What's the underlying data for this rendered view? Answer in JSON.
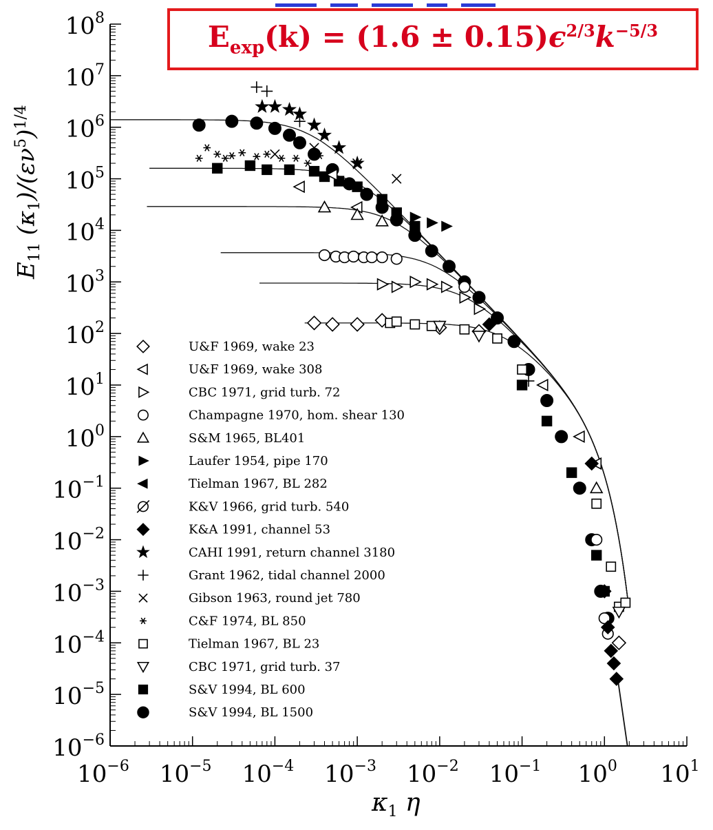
{
  "formula": {
    "lhs": "E",
    "lhs_sub": "exp",
    "arg": "(k) = (1.6 ± 0.15)",
    "eps": "ϵ",
    "eps_pow": "2/3",
    "k": "k",
    "k_pow": "−5/3"
  },
  "chart_data": {
    "type": "scatter",
    "xscale": "log",
    "yscale": "log",
    "xlim": [
      1e-06,
      10
    ],
    "ylim": [
      1e-06,
      100000000.0
    ],
    "xlabel": "κ1 η",
    "ylabel": "E11 (κ1)/(εν^5)^1/4",
    "xticks": [
      "10^-6",
      "10^-5",
      "10^-4",
      "10^-3",
      "10^-2",
      "10^-1",
      "10^0",
      "10^1"
    ],
    "yticks": [
      "10^-6",
      "10^-5",
      "10^-4",
      "10^-3",
      "10^-2",
      "10^-1",
      "10^0",
      "10^1",
      "10^2",
      "10^3",
      "10^4",
      "10^5",
      "10^6",
      "10^7",
      "10^8"
    ],
    "legend_position": "lower-left",
    "legend": [
      {
        "symbol": "diamond-open",
        "label": "U&F 1969, wake 23"
      },
      {
        "symbol": "tri-left-open",
        "label": "U&F 1969, wake 308"
      },
      {
        "symbol": "tri-right-open",
        "label": "CBC 1971, grid turb. 72"
      },
      {
        "symbol": "circle-open",
        "label": "Champagne 1970, hom. shear 130"
      },
      {
        "symbol": "tri-up-open",
        "label": "S&M 1965, BL401"
      },
      {
        "symbol": "tri-right-filled",
        "label": "Laufer 1954, pipe 170"
      },
      {
        "symbol": "tri-left-filled",
        "label": "Tielman 1967, BL 282"
      },
      {
        "symbol": "circle-slash",
        "label": "K&V 1966, grid turb. 540"
      },
      {
        "symbol": "diamond-filled",
        "label": "K&A 1991, channel 53"
      },
      {
        "symbol": "star-filled",
        "label": "CAHI 1991, return channel 3180"
      },
      {
        "symbol": "plus",
        "label": "Grant 1962, tidal channel 2000"
      },
      {
        "symbol": "cross",
        "label": "Gibson 1963, round jet 780"
      },
      {
        "symbol": "asterisk",
        "label": "C&F 1974, BL 850"
      },
      {
        "symbol": "square-open",
        "label": "Tielman 1967, BL 23"
      },
      {
        "symbol": "tri-down-open",
        "label": "CBC 1971, grid turb. 37"
      },
      {
        "symbol": "square-filled",
        "label": "S&V 1994, BL 600"
      },
      {
        "symbol": "circle-filled",
        "label": "S&V 1994, BL 1500"
      }
    ],
    "model_curves": [
      {
        "plateau": 1400000.0,
        "x_start": 1e-06
      },
      {
        "plateau": 160000.0,
        "x_start": 3e-06
      },
      {
        "plateau": 29000.0,
        "x_start": 2.8e-06
      },
      {
        "plateau": 3700.0,
        "x_start": 2.2e-05
      },
      {
        "plateau": 950.0,
        "x_start": 6.5e-05
      },
      {
        "plateau": 160.0,
        "x_start": 0.00023
      }
    ],
    "series": [
      {
        "symbol": "circle-filled",
        "points": [
          [
            1.2e-05,
            1100000.0
          ],
          [
            3e-05,
            1300000.0
          ],
          [
            6e-05,
            1200000.0
          ],
          [
            0.0001,
            950000.0
          ],
          [
            0.00015,
            700000.0
          ],
          [
            0.0002,
            500000.0
          ],
          [
            0.0003,
            300000.0
          ],
          [
            0.0005,
            150000.0
          ],
          [
            0.0008,
            80000.0
          ],
          [
            0.0013,
            50000.0
          ],
          [
            0.002,
            28000.0
          ],
          [
            0.003,
            16000.0
          ],
          [
            0.005,
            8000.0
          ],
          [
            0.008,
            4000.0
          ],
          [
            0.013,
            2000.0
          ],
          [
            0.02,
            1000.0
          ],
          [
            0.03,
            500
          ],
          [
            0.05,
            200
          ],
          [
            0.08,
            70
          ],
          [
            0.12,
            20
          ],
          [
            0.2,
            5
          ],
          [
            0.3,
            1
          ],
          [
            0.5,
            0.1
          ],
          [
            0.7,
            0.01
          ],
          [
            0.9,
            0.001
          ],
          [
            1.1,
            0.0003
          ]
        ]
      },
      {
        "symbol": "square-filled",
        "points": [
          [
            2e-05,
            160000.0
          ],
          [
            5e-05,
            180000.0
          ],
          [
            8e-05,
            150000.0
          ],
          [
            0.00015,
            150000.0
          ],
          [
            0.0003,
            140000.0
          ],
          [
            0.0004,
            110000.0
          ],
          [
            0.0006,
            90000.0
          ],
          [
            0.001,
            70000.0
          ],
          [
            0.002,
            40000.0
          ],
          [
            0.003,
            22000.0
          ],
          [
            0.005,
            12000.0
          ],
          [
            0.1,
            10
          ],
          [
            0.2,
            2
          ],
          [
            0.4,
            0.2
          ],
          [
            0.8,
            0.005
          ],
          [
            1,
            0.001
          ]
        ]
      },
      {
        "symbol": "star-filled",
        "points": [
          [
            7e-05,
            2500000.0
          ],
          [
            0.0001,
            2500000.0
          ],
          [
            0.00015,
            2200000.0
          ],
          [
            0.0002,
            1800000.0
          ],
          [
            0.0003,
            1100000.0
          ],
          [
            0.0004,
            700000.0
          ],
          [
            0.0006,
            400000.0
          ],
          [
            0.001,
            200000.0
          ]
        ]
      },
      {
        "symbol": "plus",
        "points": [
          [
            6e-05,
            6000000.0
          ],
          [
            8e-05,
            5000000.0
          ],
          [
            0.0002,
            1300000.0
          ],
          [
            0.12,
            12
          ]
        ]
      },
      {
        "symbol": "asterisk",
        "points": [
          [
            1.2e-05,
            250000.0
          ],
          [
            1.5e-05,
            400000.0
          ],
          [
            2e-05,
            300000.0
          ],
          [
            2.5e-05,
            250000.0
          ],
          [
            3e-05,
            280000.0
          ],
          [
            4e-05,
            320000.0
          ],
          [
            6e-05,
            270000.0
          ],
          [
            8e-05,
            300000.0
          ],
          [
            0.00012,
            250000.0
          ],
          [
            0.00018,
            250000.0
          ],
          [
            0.00025,
            200000.0
          ],
          [
            0.00035,
            280000.0
          ]
        ]
      },
      {
        "symbol": "tri-left-open",
        "points": [
          [
            0.0002,
            70000.0
          ],
          [
            0.0005,
            120000.0
          ],
          [
            0.001,
            28000.0
          ],
          [
            0.18,
            10
          ],
          [
            0.5,
            1
          ],
          [
            0.8,
            0.3
          ]
        ]
      },
      {
        "symbol": "tri-up-open",
        "points": [
          [
            0.0004,
            28000.0
          ],
          [
            0.001,
            20000.0
          ],
          [
            0.002,
            15000.0
          ],
          [
            0.8,
            0.1
          ]
        ]
      },
      {
        "symbol": "circle-open",
        "points": [
          [
            0.0004,
            3300.0
          ],
          [
            0.00055,
            3100.0
          ],
          [
            0.0007,
            3000.0
          ],
          [
            0.0009,
            3100.0
          ],
          [
            0.0012,
            3000.0
          ],
          [
            0.0015,
            3000.0
          ],
          [
            0.002,
            3000.0
          ],
          [
            0.003,
            2800.0
          ],
          [
            0.02,
            800
          ],
          [
            0.8,
            0.01
          ],
          [
            1,
            0.0003
          ],
          [
            1.1,
            0.00015
          ]
        ]
      },
      {
        "symbol": "tri-right-open",
        "points": [
          [
            0.002,
            900
          ],
          [
            0.003,
            800
          ],
          [
            0.005,
            1000.0
          ],
          [
            0.008,
            900
          ],
          [
            0.012,
            800
          ],
          [
            0.02,
            500
          ],
          [
            0.03,
            300
          ]
        ]
      },
      {
        "symbol": "tri-right-filled",
        "points": [
          [
            0.005,
            18000.0
          ],
          [
            0.008,
            14000.0
          ],
          [
            0.012,
            12000.0
          ]
        ]
      },
      {
        "symbol": "diamond-open",
        "points": [
          [
            0.0003,
            160
          ],
          [
            0.0005,
            150
          ],
          [
            0.001,
            150
          ],
          [
            0.002,
            180
          ],
          [
            0.01,
            130
          ],
          [
            0.03,
            110
          ],
          [
            1.5,
            0.0001
          ]
        ]
      },
      {
        "symbol": "diamond-filled",
        "points": [
          [
            0.04,
            150
          ],
          [
            0.7,
            0.3
          ],
          [
            1,
            0.001
          ],
          [
            1.1,
            0.0002
          ],
          [
            1.2,
            7e-05
          ],
          [
            1.3,
            4e-05
          ],
          [
            1.4,
            2e-05
          ]
        ]
      },
      {
        "symbol": "square-open",
        "points": [
          [
            0.0025,
            160
          ],
          [
            0.003,
            170
          ],
          [
            0.005,
            150
          ],
          [
            0.008,
            140
          ],
          [
            0.02,
            120
          ],
          [
            0.05,
            80
          ],
          [
            0.1,
            20
          ],
          [
            0.8,
            0.05
          ],
          [
            1.2,
            0.003
          ],
          [
            1.5,
            0.0005
          ],
          [
            1.8,
            0.0006
          ]
        ]
      },
      {
        "symbol": "tri-down-open",
        "points": [
          [
            0.01,
            140
          ],
          [
            0.03,
            90
          ],
          [
            1.5,
            0.0004
          ]
        ]
      },
      {
        "symbol": "cross",
        "points": [
          [
            0.0001,
            300000.0
          ],
          [
            0.0003,
            400000.0
          ],
          [
            0.001,
            200000.0
          ],
          [
            0.003,
            100000.0
          ]
        ]
      }
    ]
  }
}
